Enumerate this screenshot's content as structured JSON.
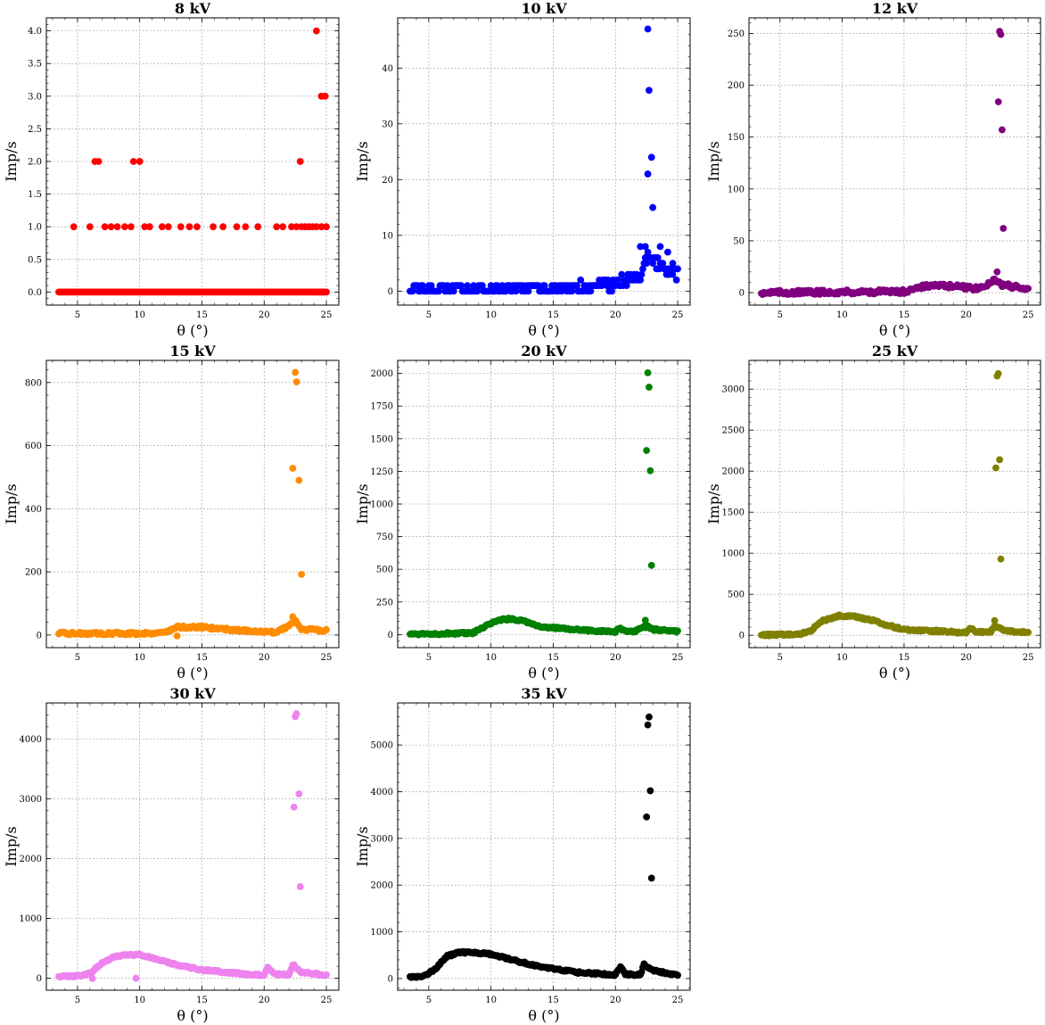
{
  "chart_data": [
    {
      "type": "scatter",
      "title": "8 kV",
      "xlabel": "θ (°)",
      "ylabel": "Imp/s",
      "color": "#ff0000",
      "xlim": [
        2.5,
        26
      ],
      "ylim": [
        -0.2,
        4.2
      ],
      "xticks": [
        5,
        10,
        15,
        20,
        25
      ],
      "yticks": [
        0.0,
        0.5,
        1.0,
        1.5,
        2.0,
        2.5,
        3.0,
        3.5,
        4.0
      ],
      "ytick_labels": [
        "0.0",
        "0.5",
        "1.0",
        "1.5",
        "2.0",
        "2.5",
        "3.0",
        "3.5",
        "4.0"
      ],
      "grid": true,
      "profile": {
        "base": [
          [
            3.5,
            0
          ],
          [
            25,
            0
          ]
        ],
        "noise": 0,
        "peaks": [],
        "dip": null
      },
      "points": [
        [
          4.7,
          1
        ],
        [
          6.0,
          1
        ],
        [
          7.2,
          1
        ],
        [
          7.7,
          1
        ],
        [
          8.2,
          1
        ],
        [
          8.8,
          1
        ],
        [
          9.3,
          1
        ],
        [
          10.4,
          1
        ],
        [
          10.8,
          1
        ],
        [
          11.8,
          1
        ],
        [
          12.3,
          1
        ],
        [
          13.3,
          1
        ],
        [
          14.0,
          1
        ],
        [
          14.6,
          1
        ],
        [
          15.9,
          1
        ],
        [
          16.7,
          1
        ],
        [
          17.8,
          1
        ],
        [
          18.5,
          1
        ],
        [
          19.5,
          1
        ],
        [
          21.0,
          1
        ],
        [
          21.5,
          1
        ],
        [
          22.2,
          1
        ],
        [
          22.6,
          1
        ],
        [
          23.0,
          1
        ],
        [
          23.3,
          1
        ],
        [
          23.6,
          1
        ],
        [
          23.9,
          1
        ],
        [
          24.2,
          1
        ],
        [
          24.6,
          1
        ],
        [
          25.0,
          1
        ],
        [
          6.4,
          2
        ],
        [
          6.7,
          2
        ],
        [
          9.5,
          2
        ],
        [
          10.0,
          2
        ],
        [
          22.9,
          2
        ],
        [
          24.6,
          3
        ],
        [
          24.9,
          3
        ],
        [
          24.2,
          4
        ],
        [
          24.3,
          0
        ],
        [
          24.7,
          0
        ]
      ]
    },
    {
      "type": "scatter",
      "title": "10 kV",
      "xlabel": "θ (°)",
      "ylabel": "Imp/s",
      "color": "#0000ff",
      "xlim": [
        2.5,
        26
      ],
      "ylim": [
        -2.5,
        49
      ],
      "xticks": [
        5,
        10,
        15,
        20,
        25
      ],
      "yticks": [
        0,
        10,
        20,
        30,
        40
      ],
      "ytick_labels": [
        "0",
        "10",
        "20",
        "30",
        "40"
      ],
      "grid": true,
      "profile": {
        "base": [
          [
            3.5,
            0.3
          ],
          [
            17,
            0.5
          ],
          [
            20,
            1.5
          ],
          [
            22,
            3
          ],
          [
            22.5,
            6
          ],
          [
            23.5,
            5
          ],
          [
            25,
            3
          ]
        ],
        "noise": 1,
        "peaks": [],
        "dip": null
      },
      "points": [
        [
          22.6,
          47
        ],
        [
          22.7,
          36
        ],
        [
          22.9,
          24
        ],
        [
          22.6,
          21
        ],
        [
          23.0,
          15
        ],
        [
          22.0,
          8
        ],
        [
          22.4,
          8
        ],
        [
          23.6,
          8
        ],
        [
          24.2,
          7
        ],
        [
          23.3,
          6
        ],
        [
          24.6,
          5
        ]
      ]
    },
    {
      "type": "scatter",
      "title": "12 kV",
      "xlabel": "θ (°)",
      "ylabel": "Imp/s",
      "color": "#800080",
      "xlim": [
        2.5,
        26
      ],
      "ylim": [
        -12,
        265
      ],
      "xticks": [
        5,
        10,
        15,
        20,
        25
      ],
      "yticks": [
        0,
        50,
        100,
        150,
        200,
        250
      ],
      "ytick_labels": [
        "0",
        "50",
        "100",
        "150",
        "200",
        "250"
      ],
      "grid": true,
      "profile": {
        "base": [
          [
            3.5,
            0
          ],
          [
            15,
            1
          ],
          [
            16,
            5
          ],
          [
            17.5,
            7
          ],
          [
            19,
            6
          ],
          [
            21,
            4
          ],
          [
            21.6,
            6
          ],
          [
            22.3,
            14
          ],
          [
            22.8,
            8
          ],
          [
            25,
            3
          ]
        ],
        "noise": 2,
        "peaks": [],
        "dip": null
      },
      "points": [
        [
          22.7,
          252
        ],
        [
          22.8,
          249
        ],
        [
          22.6,
          184
        ],
        [
          22.9,
          157
        ],
        [
          23.0,
          62
        ],
        [
          22.5,
          20
        ]
      ]
    },
    {
      "type": "scatter",
      "title": "15 kV",
      "xlabel": "θ (°)",
      "ylabel": "Imp/s",
      "color": "#ff8c00",
      "xlim": [
        2.5,
        26
      ],
      "ylim": [
        -40,
        870
      ],
      "xticks": [
        5,
        10,
        15,
        20,
        25
      ],
      "yticks": [
        0,
        200,
        400,
        600,
        800
      ],
      "ytick_labels": [
        "0",
        "200",
        "400",
        "600",
        "800"
      ],
      "grid": true,
      "profile": {
        "base": [
          [
            3.5,
            5
          ],
          [
            10,
            5
          ],
          [
            12,
            8
          ],
          [
            13,
            25
          ],
          [
            15,
            25
          ],
          [
            18,
            15
          ],
          [
            21,
            8
          ],
          [
            22,
            30
          ],
          [
            22.5,
            50
          ],
          [
            23,
            18
          ],
          [
            25,
            15
          ]
        ],
        "noise": 4,
        "peaks": [],
        "dip": [
          13.0,
          -3
        ]
      },
      "points": [
        [
          22.5,
          832
        ],
        [
          22.6,
          802
        ],
        [
          22.3,
          528
        ],
        [
          22.8,
          490
        ],
        [
          23.0,
          192
        ],
        [
          22.3,
          58
        ]
      ]
    },
    {
      "type": "scatter",
      "title": "20 kV",
      "xlabel": "θ (°)",
      "ylabel": "Imp/s",
      "color": "#008000",
      "xlim": [
        2.5,
        26
      ],
      "ylim": [
        -100,
        2100
      ],
      "xticks": [
        5,
        10,
        15,
        20,
        25
      ],
      "yticks": [
        0,
        250,
        500,
        750,
        1000,
        1250,
        1500,
        1750,
        2000
      ],
      "ytick_labels": [
        "0",
        "250",
        "500",
        "750",
        "1000",
        "1250",
        "1500",
        "1750",
        "2000"
      ],
      "grid": true,
      "profile": {
        "base": [
          [
            3.5,
            5
          ],
          [
            8.5,
            10
          ],
          [
            9.5,
            60
          ],
          [
            10.5,
            110
          ],
          [
            11.5,
            120
          ],
          [
            12.5,
            110
          ],
          [
            14,
            60
          ],
          [
            16,
            45
          ],
          [
            18,
            30
          ],
          [
            20,
            20
          ],
          [
            20.3,
            50
          ],
          [
            20.7,
            25
          ],
          [
            21.5,
            20
          ],
          [
            22.2,
            60
          ],
          [
            22.7,
            60
          ],
          [
            23,
            40
          ],
          [
            25,
            25
          ]
        ],
        "noise": 8,
        "peaks": [],
        "dip": null
      },
      "points": [
        [
          22.6,
          2005
        ],
        [
          22.7,
          1895
        ],
        [
          22.5,
          1410
        ],
        [
          22.8,
          1255
        ],
        [
          22.9,
          530
        ],
        [
          22.4,
          110
        ]
      ]
    },
    {
      "type": "scatter",
      "title": "25 kV",
      "xlabel": "θ (°)",
      "ylabel": "Imp/s",
      "color": "#808000",
      "xlim": [
        2.5,
        26
      ],
      "ylim": [
        -150,
        3350
      ],
      "xticks": [
        5,
        10,
        15,
        20,
        25
      ],
      "yticks": [
        0,
        500,
        1000,
        1500,
        2000,
        2500,
        3000
      ],
      "ytick_labels": [
        "0",
        "500",
        "1000",
        "1500",
        "2000",
        "2500",
        "3000"
      ],
      "grid": true,
      "profile": {
        "base": [
          [
            3.5,
            5
          ],
          [
            6.5,
            10
          ],
          [
            7.5,
            60
          ],
          [
            8.5,
            180
          ],
          [
            9.8,
            240
          ],
          [
            11,
            230
          ],
          [
            12.5,
            180
          ],
          [
            14,
            110
          ],
          [
            15,
            70
          ],
          [
            18,
            50
          ],
          [
            20,
            30
          ],
          [
            20.4,
            90
          ],
          [
            20.7,
            40
          ],
          [
            22,
            40
          ],
          [
            22.3,
            120
          ],
          [
            23,
            60
          ],
          [
            25,
            30
          ]
        ],
        "noise": 12,
        "peaks": [],
        "dip": null
      },
      "points": [
        [
          22.6,
          3190
        ],
        [
          22.5,
          3160
        ],
        [
          22.4,
          2040
        ],
        [
          22.7,
          2140
        ],
        [
          22.8,
          930
        ],
        [
          22.3,
          180
        ]
      ]
    },
    {
      "type": "scatter",
      "title": "30 kV",
      "xlabel": "θ (°)",
      "ylabel": "Imp/s",
      "color": "#ee82ee",
      "xlim": [
        2.5,
        26
      ],
      "ylim": [
        -200,
        4600
      ],
      "xticks": [
        5,
        10,
        15,
        20,
        25
      ],
      "yticks": [
        0,
        1000,
        2000,
        3000,
        4000
      ],
      "ytick_labels": [
        "0",
        "1000",
        "2000",
        "3000",
        "4000"
      ],
      "grid": true,
      "profile": {
        "base": [
          [
            3.5,
            30
          ],
          [
            5,
            35
          ],
          [
            6,
            80
          ],
          [
            7,
            260
          ],
          [
            8,
            360
          ],
          [
            9,
            390
          ],
          [
            10,
            390
          ],
          [
            11,
            340
          ],
          [
            13,
            220
          ],
          [
            15,
            140
          ],
          [
            18,
            80
          ],
          [
            20,
            50
          ],
          [
            20.3,
            180
          ],
          [
            20.8,
            70
          ],
          [
            22,
            60
          ],
          [
            22.3,
            230
          ],
          [
            23,
            100
          ],
          [
            25,
            50
          ]
        ],
        "noise": 15,
        "peaks": [],
        "dip": [
          9.7,
          0
        ]
      },
      "points": [
        [
          22.6,
          4420
        ],
        [
          22.5,
          4370
        ],
        [
          22.4,
          2860
        ],
        [
          22.8,
          3080
        ],
        [
          22.9,
          1530
        ],
        [
          6.2,
          -5
        ]
      ]
    },
    {
      "type": "scatter",
      "title": "35 kV",
      "xlabel": "θ (°)",
      "ylabel": "Imp/s",
      "color": "#000000",
      "xlim": [
        2.5,
        26
      ],
      "ylim": [
        -250,
        5900
      ],
      "xticks": [
        5,
        10,
        15,
        20,
        25
      ],
      "yticks": [
        0,
        1000,
        2000,
        3000,
        4000,
        5000
      ],
      "ytick_labels": [
        "0",
        "1000",
        "2000",
        "3000",
        "4000",
        "5000"
      ],
      "grid": true,
      "profile": {
        "base": [
          [
            3.5,
            40
          ],
          [
            4.5,
            40
          ],
          [
            5.5,
            200
          ],
          [
            6.5,
            480
          ],
          [
            7.5,
            560
          ],
          [
            8.5,
            560
          ],
          [
            10,
            520
          ],
          [
            12,
            380
          ],
          [
            14,
            250
          ],
          [
            17,
            130
          ],
          [
            20,
            80
          ],
          [
            20.4,
            250
          ],
          [
            20.8,
            90
          ],
          [
            22,
            80
          ],
          [
            22.3,
            300
          ],
          [
            23,
            180
          ],
          [
            25,
            60
          ]
        ],
        "noise": 20,
        "peaks": [],
        "dip": null
      },
      "points": [
        [
          22.7,
          5600
        ],
        [
          22.6,
          5430
        ],
        [
          22.8,
          4020
        ],
        [
          22.5,
          3460
        ],
        [
          22.9,
          2150
        ]
      ]
    }
  ]
}
